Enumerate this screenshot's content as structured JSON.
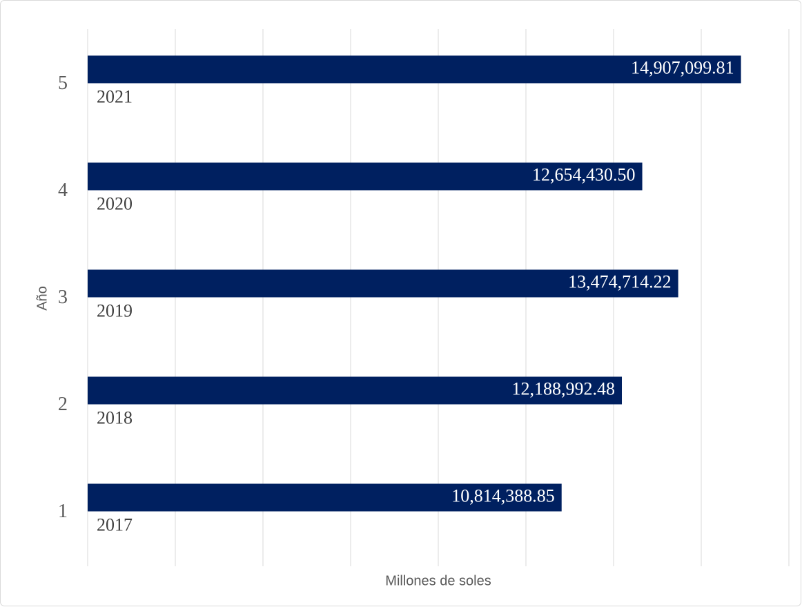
{
  "chart_data": {
    "type": "bar",
    "orientation": "horizontal",
    "x_label": "Millones de soles",
    "y_label": "Año",
    "categories": [
      "1",
      "2",
      "3",
      "4",
      "5"
    ],
    "year_labels": [
      "2017",
      "2018",
      "2019",
      "2020",
      "2021"
    ],
    "values": [
      10814388.85,
      12188992.48,
      13474714.22,
      12654430.5,
      14907099.81
    ],
    "value_labels": [
      "10,814,388.85",
      "12,188,992.48",
      "13,474,714.22",
      "12,654,430.50",
      "14,907,099.81"
    ],
    "color": "#002060",
    "xlim": [
      0,
      16000000
    ],
    "xticks": [
      0,
      2000000,
      4000000,
      6000000,
      8000000,
      10000000,
      12000000,
      14000000,
      16000000
    ],
    "grid": true
  }
}
